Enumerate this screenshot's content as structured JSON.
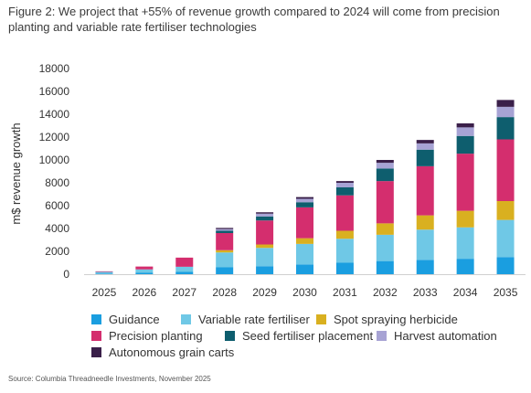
{
  "figure": {
    "title": "Figure 2: We project that +55% of revenue growth compared to 2024 will come from precision planting and variable rate fertiliser technologies",
    "source": "Source: Columbia Threadneedle Investments, November 2025"
  },
  "chart_data": {
    "type": "bar",
    "stacked": true,
    "categories": [
      "2025",
      "2026",
      "2027",
      "2028",
      "2029",
      "2030",
      "2031",
      "2032",
      "2033",
      "2034",
      "2035"
    ],
    "ylabel": "m$ revenue growth",
    "ylim": [
      0,
      18000
    ],
    "yticks": [
      0,
      2000,
      4000,
      6000,
      8000,
      10000,
      12000,
      14000,
      16000,
      18000
    ],
    "ytick_labels": [
      "0",
      "2000",
      "4000",
      "6000",
      "8000",
      "10000",
      "12000",
      "14000",
      "16000",
      "18000"
    ],
    "grid": false,
    "legend": "bottom",
    "series": [
      {
        "name": "Guidance",
        "color": "#1a9ee0",
        "values": [
          50,
          120,
          200,
          600,
          700,
          850,
          1000,
          1150,
          1250,
          1350,
          1500
        ]
      },
      {
        "name": "Variable rate fertiliser",
        "color": "#6fc8e6",
        "values": [
          150,
          300,
          450,
          1300,
          1600,
          1800,
          2100,
          2300,
          2650,
          2750,
          3250
        ]
      },
      {
        "name": "Spot spraying herbicide",
        "color": "#d9b020",
        "values": [
          0,
          0,
          0,
          200,
          300,
          500,
          700,
          1000,
          1250,
          1450,
          1650
        ]
      },
      {
        "name": "Precision planting",
        "color": "#d42e6e",
        "values": [
          50,
          250,
          800,
          1500,
          2100,
          2700,
          3100,
          3700,
          4300,
          5000,
          5400
        ]
      },
      {
        "name": "Seed fertiliser placement",
        "color": "#0e5e6e",
        "values": [
          0,
          0,
          0,
          200,
          350,
          450,
          700,
          1100,
          1450,
          1550,
          1950
        ]
      },
      {
        "name": "Harvest automation",
        "color": "#a7a3d4",
        "values": [
          0,
          0,
          0,
          150,
          250,
          300,
          400,
          500,
          550,
          750,
          900
        ]
      },
      {
        "name": "Autonomous grain carts",
        "color": "#3a1f49",
        "values": [
          0,
          0,
          0,
          100,
          120,
          150,
          150,
          250,
          300,
          350,
          600
        ]
      }
    ]
  }
}
